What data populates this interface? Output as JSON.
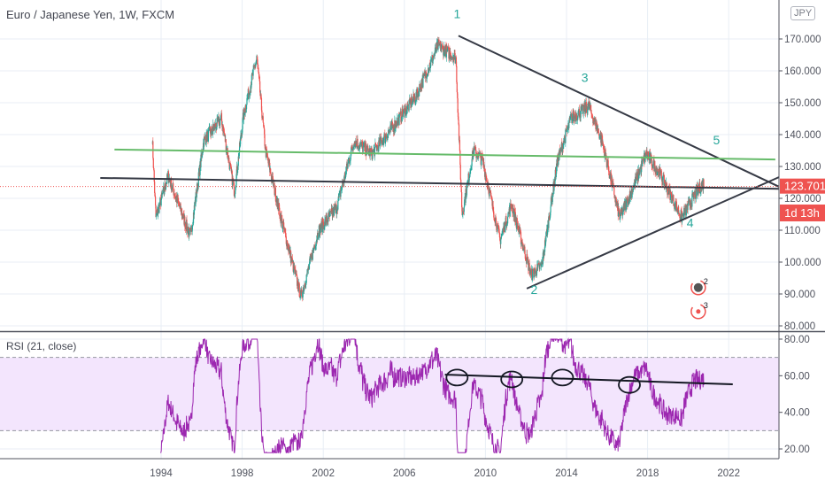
{
  "header": {
    "title": "Euro / Japanese Yen, 1W, FXCM",
    "currency_badge": "JPY"
  },
  "rsi_panel": {
    "title": "RSI (21, close)"
  },
  "price_tag": {
    "value": "123.701",
    "countdown": "1d 13h",
    "color": "#ef5350"
  },
  "colors": {
    "up": "#26a69a",
    "down": "#ef5350",
    "rsi": "#9c27b0",
    "rsi_band": "#f3e5fd",
    "trendline": "#363a45",
    "green_line": "#66bb6a",
    "wave_label": "#26a69a",
    "grid": "#e8eef5"
  },
  "chart_data": [
    {
      "type": "candlestick",
      "title": "Euro / Japanese Yen, 1W, FXCM",
      "x_ticks": [
        "1994",
        "1998",
        "2002",
        "2006",
        "2010",
        "2014",
        "2018",
        "2022"
      ],
      "y_ticks": [
        "170.000",
        "160.000",
        "150.000",
        "140.000",
        "130.000",
        "120.000",
        "110.000",
        "100.000",
        "90.000",
        "80.000"
      ],
      "ylim": [
        80,
        170
      ],
      "last_price": 123.701,
      "keypoints": [
        [
          1993.56,
          139
        ],
        [
          1993.74,
          114
        ],
        [
          1994.35,
          127
        ],
        [
          1995.44,
          108
        ],
        [
          1996.1,
          138
        ],
        [
          1996.97,
          145
        ],
        [
          1997.62,
          122
        ],
        [
          1998.06,
          146
        ],
        [
          1998.72,
          164
        ],
        [
          1999.15,
          135
        ],
        [
          1999.94,
          113
        ],
        [
          2000.9,
          89
        ],
        [
          2001.77,
          110
        ],
        [
          2002.65,
          117
        ],
        [
          2003.52,
          138
        ],
        [
          2004.39,
          134
        ],
        [
          2005.27,
          141
        ],
        [
          2006.58,
          152
        ],
        [
          2007.67,
          168
        ],
        [
          2008.54,
          164
        ],
        [
          2008.85,
          115
        ],
        [
          2009.41,
          135
        ],
        [
          2009.85,
          132
        ],
        [
          2010.72,
          107
        ],
        [
          2011.29,
          118
        ],
        [
          2012.25,
          96
        ],
        [
          2012.78,
          99
        ],
        [
          2013.56,
          132
        ],
        [
          2014.22,
          145
        ],
        [
          2015.09,
          149
        ],
        [
          2015.75,
          138
        ],
        [
          2016.62,
          114
        ],
        [
          2017.14,
          121
        ],
        [
          2017.93,
          134
        ],
        [
          2018.59,
          128
        ],
        [
          2019.68,
          114
        ],
        [
          2020.33,
          121
        ],
        [
          2020.77,
          125
        ]
      ],
      "annotations": {
        "trendlines": [
          {
            "name": "upper-triangle-line",
            "color": "#363a45",
            "from": [
              2008.67,
              171
            ],
            "to": [
              2024.5,
              123.6
            ]
          },
          {
            "name": "lower-triangle-line",
            "color": "#363a45",
            "from": [
              2012.04,
              91.7
            ],
            "to": [
              2024.5,
              126.7
            ]
          },
          {
            "name": "horizontal-support-line",
            "color": "#363a45",
            "from": [
              1991,
              126.4
            ],
            "to": [
              2024.5,
              123
            ]
          },
          {
            "name": "green-resistance-line",
            "color": "#66bb6a",
            "from": [
              1991.7,
              135.3
            ],
            "to": [
              2024.3,
              132.2
            ]
          }
        ],
        "wave_labels": [
          {
            "text": "1",
            "at": [
              2008.6,
              176.5
            ]
          },
          {
            "text": "2",
            "at": [
              2012.4,
              90
            ]
          },
          {
            "text": "3",
            "at": [
              2014.9,
              156.5
            ]
          },
          {
            "text": "4",
            "at": [
              2020.1,
              111
            ]
          },
          {
            "text": "5",
            "at": [
              2021.4,
              137
            ]
          }
        ],
        "event_markers": [
          {
            "text": "2",
            "at": [
              2020.5,
              92
            ]
          },
          {
            "text": "3",
            "at": [
              2020.5,
              84.5
            ]
          }
        ]
      }
    },
    {
      "type": "line",
      "title": "RSI (21, close)",
      "y_ticks": [
        "80.00",
        "60.00",
        "40.00",
        "20.00"
      ],
      "ylim": [
        15,
        82
      ],
      "band": [
        30,
        70
      ],
      "period": 21,
      "trendline": {
        "from": [
          2008.0,
          60.6
        ],
        "to": [
          2022.2,
          55.3
        ]
      },
      "circled_points": [
        [
          2008.6,
          59
        ],
        [
          2011.3,
          58
        ],
        [
          2013.8,
          59
        ],
        [
          2017.1,
          55
        ]
      ]
    }
  ]
}
